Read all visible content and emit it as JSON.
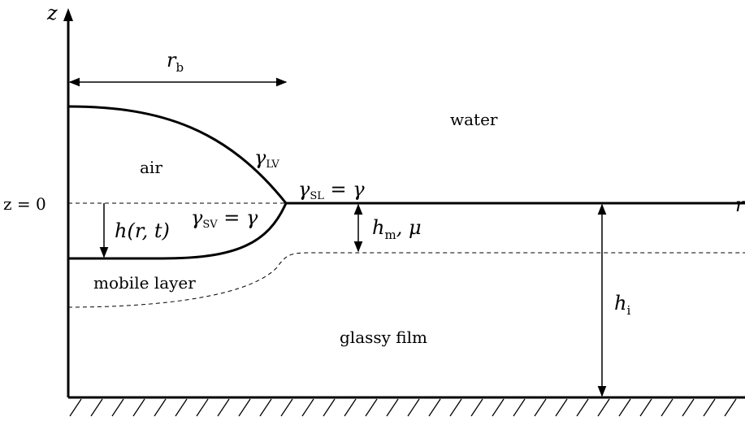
{
  "axes": {
    "z_axis": "z",
    "r_axis": "r",
    "z_zero": "z = 0"
  },
  "dimensions": {
    "bubble_radius": {
      "symbol": "r",
      "subscript": "b"
    },
    "bubble_height": "h(r, t)",
    "mobile_thickness": {
      "symbol": "h",
      "subscript": "m",
      "suffix": ", μ"
    },
    "film_thickness": {
      "symbol": "h",
      "subscript": "i"
    }
  },
  "tensions": {
    "liquid_vapor": {
      "symbol": "γ",
      "subscript": "LV"
    },
    "solid_liquid": {
      "symbol": "γ",
      "subscript": "SL",
      "suffix": " = γ"
    },
    "solid_vapor": {
      "symbol": "γ",
      "subscript": "SV",
      "suffix": " = γ"
    }
  },
  "regions": {
    "water": "water",
    "air": "air",
    "mobile_layer": "mobile layer",
    "glassy_film": "glassy film"
  }
}
